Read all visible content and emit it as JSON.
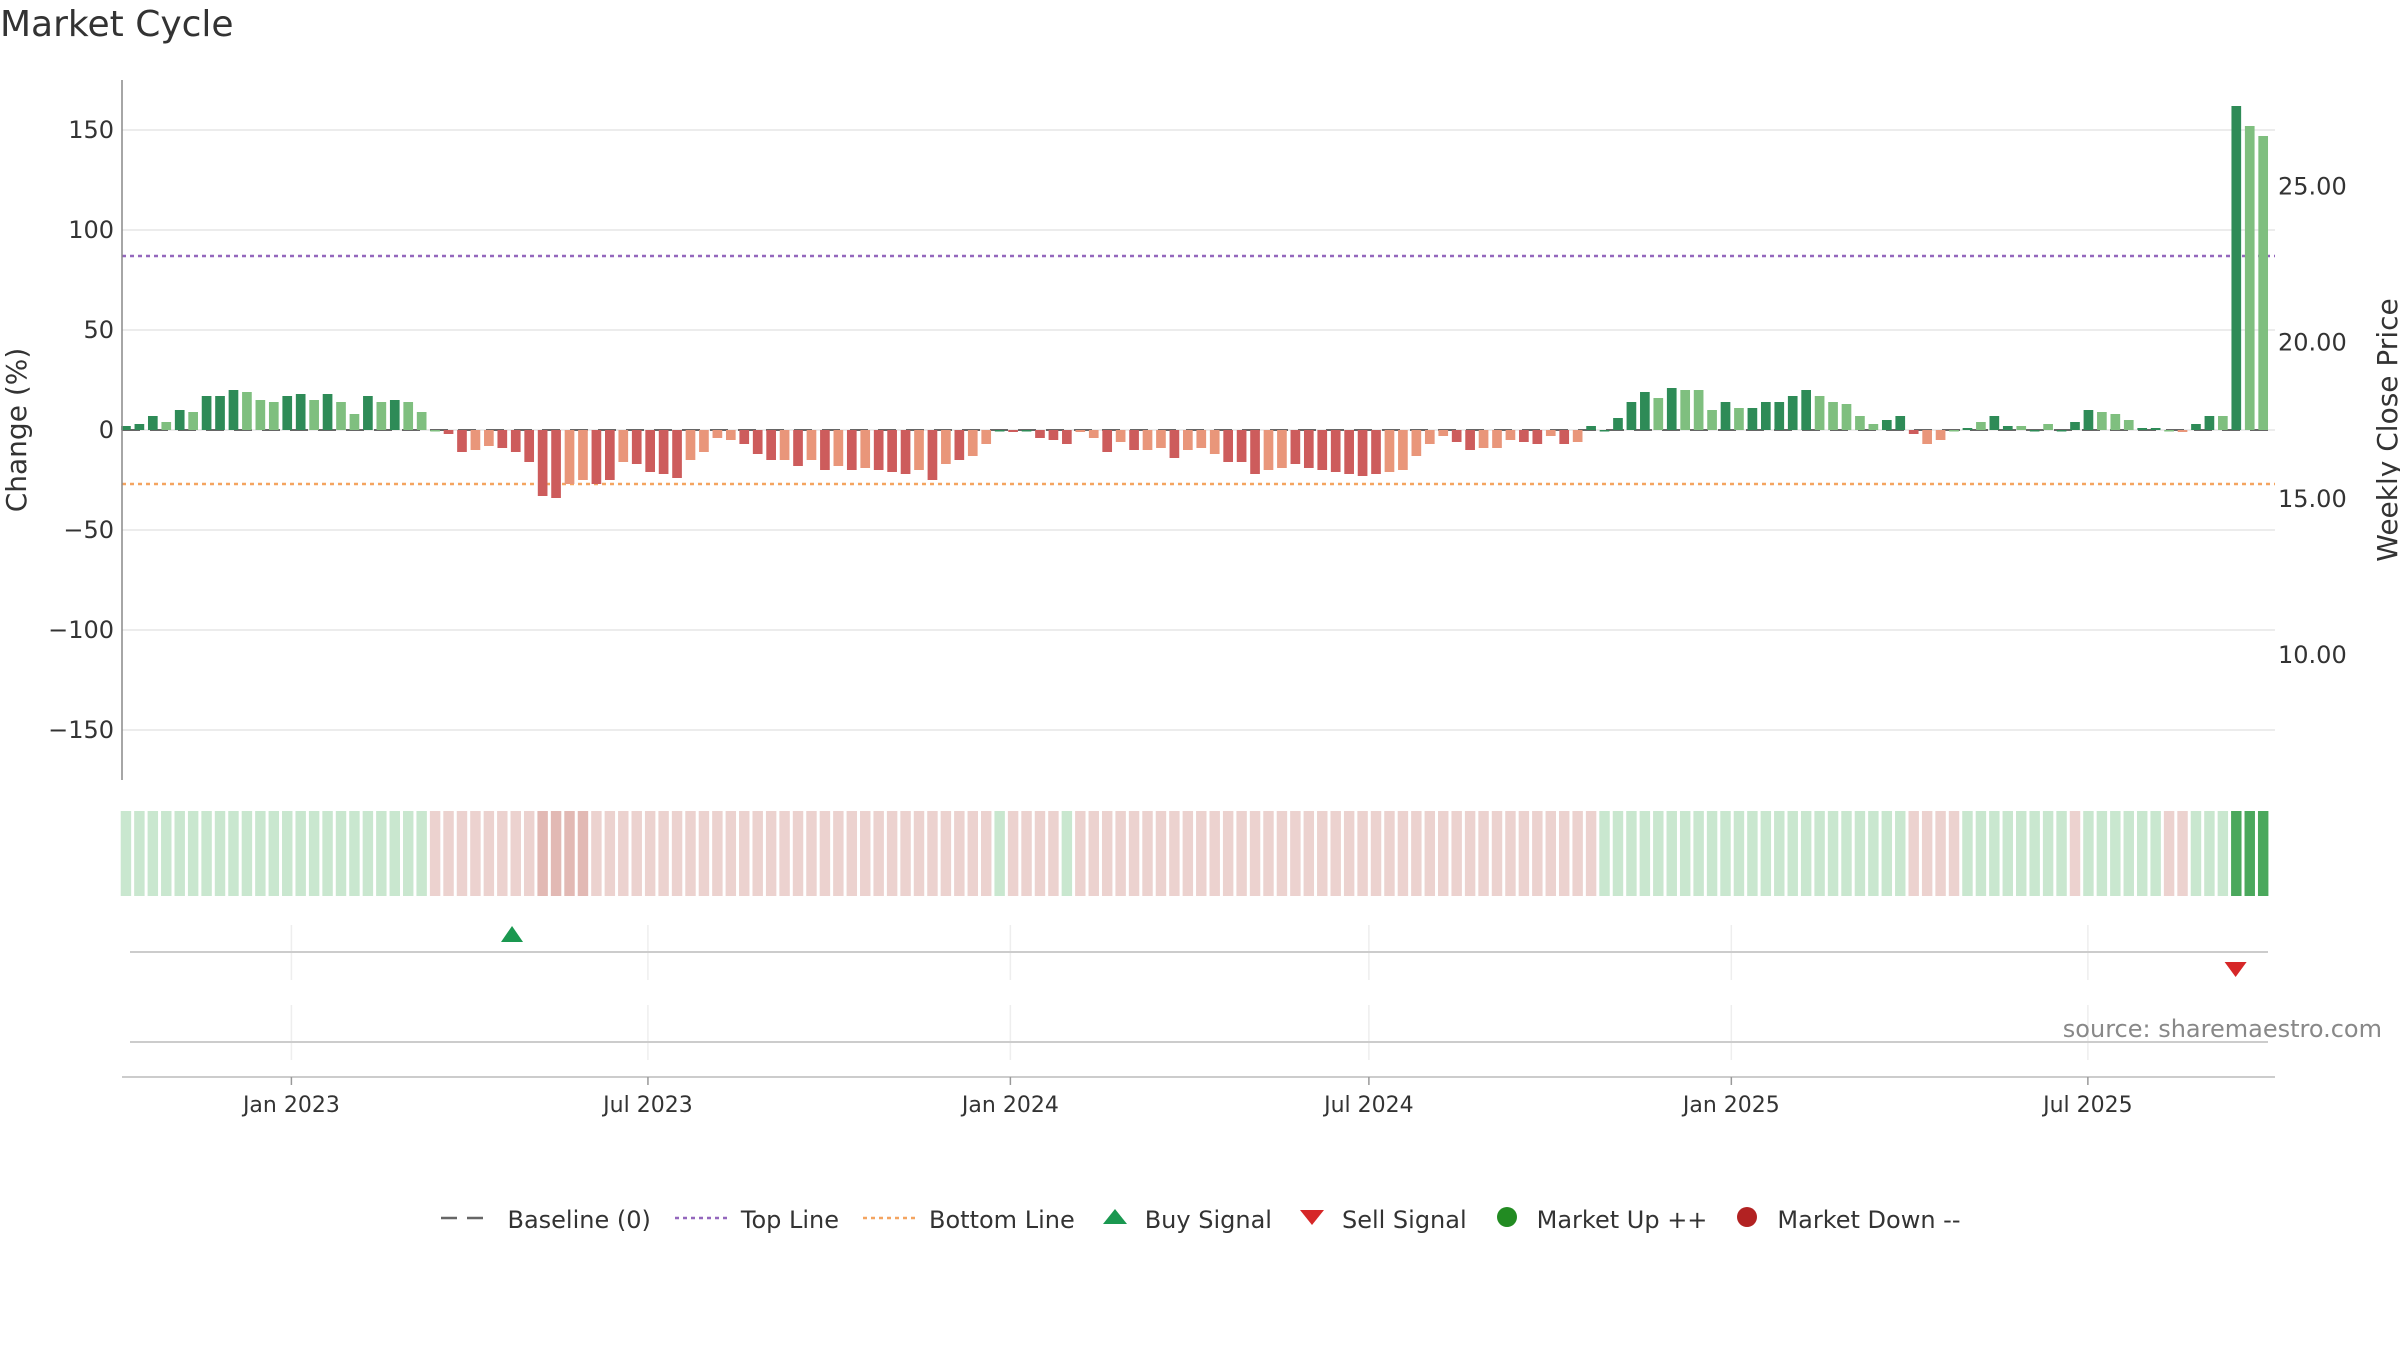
{
  "title": "Market Cycle",
  "source": "source: sharemaestro.com",
  "colors": {
    "up_strong": "#2e8b57",
    "up_light": "#7fbf7f",
    "down_strong": "#cd5c5c",
    "down_light": "#e9967a",
    "top_line": "#9467bd",
    "bottom_line": "#f4a460",
    "buy": "#1a9850",
    "sell": "#d62728",
    "market_up": "#228b22",
    "market_down": "#b22222",
    "baseline": "#666666"
  },
  "legend": [
    {
      "label": "Baseline (0)",
      "kind": "dash",
      "color": "#666666"
    },
    {
      "label": "Top Line",
      "kind": "dotted",
      "color": "#9467bd"
    },
    {
      "label": "Bottom Line",
      "kind": "dotted",
      "color": "#f4a460"
    },
    {
      "label": "Buy Signal",
      "kind": "tri-up",
      "color": "#1a9850"
    },
    {
      "label": "Sell Signal",
      "kind": "tri-down",
      "color": "#d62728"
    },
    {
      "label": "Market Up ++",
      "kind": "dot",
      "color": "#228b22"
    },
    {
      "label": "Market Down --",
      "kind": "dot",
      "color": "#b22222"
    }
  ],
  "chart_data": {
    "type": "bar",
    "title": "Market Cycle",
    "ylabel": "Change (%)",
    "y2label": "Weekly Close Price",
    "ylim": [
      -175,
      175
    ],
    "yticks": [
      150,
      100,
      50,
      0,
      -50,
      -100,
      -150
    ],
    "ytick_labels": [
      "150",
      "100",
      "50",
      "0",
      "−50",
      "−100",
      "−150"
    ],
    "y2lim": [
      6.0,
      28.4
    ],
    "y2ticks": [
      25,
      20,
      15,
      10
    ],
    "y2tick_labels": [
      "25.00",
      "20.00",
      "15.00",
      "10.00"
    ],
    "top_line": 87,
    "bottom_line": -27,
    "baseline": 0,
    "x_start": "2022-10-09",
    "x_end": "2025-09-28",
    "x_range": [
      "2022-10-07",
      "2025-10-04"
    ],
    "xticks": [
      "2023-01-01",
      "2023-07-01",
      "2024-01-01",
      "2024-07-01",
      "2025-01-01",
      "2025-07-01"
    ],
    "xtick_labels": [
      "Jan 2023",
      "Jul 2023",
      "Jan 2024",
      "Jul 2024",
      "Jan 2025",
      "Jul 2025"
    ],
    "values": [
      2,
      3,
      7,
      4,
      10,
      9,
      17,
      17,
      20,
      19,
      15,
      14,
      17,
      18,
      15,
      18,
      14,
      8,
      17,
      14,
      15,
      14,
      9,
      0,
      -2,
      -11,
      -10,
      -8,
      -9,
      -11,
      -16,
      -33,
      -34,
      -27,
      -25,
      -27,
      -25,
      -16,
      -17,
      -21,
      -22,
      -24,
      -15,
      -11,
      -4,
      -5,
      -7,
      -12,
      -15,
      -15,
      -18,
      -15,
      -20,
      -18,
      -20,
      -19,
      -20,
      -21,
      -22,
      -20,
      -25,
      -17,
      -15,
      -13,
      -7,
      0,
      -1,
      0,
      -4,
      -5,
      -7,
      -1,
      -4,
      -11,
      -6,
      -10,
      -10,
      -9,
      -14,
      -10,
      -9,
      -12,
      -16,
      -16,
      -22,
      -20,
      -19,
      -17,
      -19,
      -20,
      -21,
      -22,
      -23,
      -22,
      -21,
      -20,
      -13,
      -7,
      -3,
      -6,
      -10,
      -9,
      -9,
      -5,
      -6,
      -7,
      -3,
      -7,
      -6,
      2,
      0,
      6,
      14,
      19,
      16,
      21,
      20,
      20,
      10,
      14,
      11,
      11,
      14,
      14,
      17,
      20,
      17,
      14,
      13,
      7,
      3,
      5,
      7,
      -2,
      -7,
      -5,
      0,
      1,
      4,
      7,
      2,
      2,
      0,
      3,
      0,
      4,
      10,
      9,
      8,
      5,
      1,
      1,
      0,
      -1,
      3,
      7,
      7,
      162,
      152,
      147
    ],
    "shades": [
      "s",
      "s",
      "s",
      "l",
      "s",
      "l",
      "s",
      "s",
      "s",
      "l",
      "l",
      "l",
      "s",
      "s",
      "l",
      "s",
      "l",
      "l",
      "s",
      "l",
      "s",
      "l",
      "l",
      "l",
      "s",
      "s",
      "l",
      "l",
      "s",
      "s",
      "s",
      "s",
      "s",
      "l",
      "l",
      "s",
      "s",
      "l",
      "s",
      "s",
      "s",
      "s",
      "l",
      "l",
      "l",
      "l",
      "s",
      "s",
      "s",
      "l",
      "s",
      "l",
      "s",
      "l",
      "s",
      "l",
      "s",
      "s",
      "s",
      "l",
      "s",
      "l",
      "s",
      "l",
      "l",
      "s",
      "s",
      "s",
      "s",
      "s",
      "s",
      "l",
      "l",
      "s",
      "l",
      "s",
      "l",
      "l",
      "s",
      "l",
      "l",
      "l",
      "s",
      "s",
      "s",
      "l",
      "l",
      "s",
      "s",
      "s",
      "s",
      "s",
      "s",
      "s",
      "l",
      "l",
      "l",
      "l",
      "l",
      "s",
      "s",
      "l",
      "l",
      "l",
      "s",
      "s",
      "l",
      "s",
      "l",
      "s",
      "s",
      "s",
      "s",
      "s",
      "l",
      "s",
      "l",
      "l",
      "l",
      "s",
      "l",
      "s",
      "s",
      "s",
      "s",
      "s",
      "l",
      "l",
      "l",
      "l",
      "l",
      "s",
      "s",
      "s",
      "l",
      "l",
      "l",
      "s",
      "l",
      "s",
      "s",
      "l",
      "s",
      "l",
      "s",
      "s",
      "s",
      "l",
      "l",
      "l",
      "s",
      "s",
      "l",
      "l",
      "s",
      "s",
      "l",
      "s",
      "l",
      "l"
    ],
    "regime": [
      "up",
      "up",
      "up",
      "up",
      "up",
      "up",
      "up",
      "up",
      "up",
      "up",
      "up",
      "up",
      "up",
      "up",
      "up",
      "up",
      "up",
      "up",
      "up",
      "up",
      "up",
      "up",
      "up",
      "dn",
      "dn",
      "dn",
      "dn",
      "dn",
      "dn",
      "dn",
      "dn",
      "dn2",
      "dn2",
      "dn2",
      "dn2",
      "dn",
      "dn",
      "dn",
      "dn",
      "dn",
      "dn",
      "dn",
      "dn",
      "dn",
      "dn",
      "dn",
      "dn",
      "dn",
      "dn",
      "dn",
      "dn",
      "dn",
      "dn",
      "dn",
      "dn",
      "dn",
      "dn",
      "dn",
      "dn",
      "dn",
      "dn",
      "dn",
      "dn",
      "dn",
      "dn",
      "up",
      "dn",
      "dn",
      "dn",
      "dn",
      "up",
      "dn",
      "dn",
      "dn",
      "dn",
      "dn",
      "dn",
      "dn",
      "dn",
      "dn",
      "dn",
      "dn",
      "dn",
      "dn",
      "dn",
      "dn",
      "dn",
      "dn",
      "dn",
      "dn",
      "dn",
      "dn",
      "dn",
      "dn",
      "dn",
      "dn",
      "dn",
      "dn",
      "dn",
      "dn",
      "dn",
      "dn",
      "dn",
      "dn",
      "dn",
      "dn",
      "dn",
      "dn",
      "dn",
      "dn",
      "up",
      "up",
      "up",
      "up",
      "up",
      "up",
      "up",
      "up",
      "up",
      "up",
      "up",
      "up",
      "up",
      "up",
      "up",
      "up",
      "up",
      "up",
      "up",
      "up",
      "up",
      "up",
      "up",
      "dn",
      "dn",
      "dn",
      "dn",
      "up",
      "up",
      "up",
      "up",
      "up",
      "up",
      "up",
      "up",
      "dn",
      "up",
      "up",
      "up",
      "up",
      "up",
      "up",
      "dn",
      "dn",
      "up",
      "up",
      "up",
      "up2",
      "up2",
      "up2"
    ],
    "buy_signals": [
      "2023-04-23"
    ],
    "sell_signals": [
      "2025-09-14"
    ]
  }
}
